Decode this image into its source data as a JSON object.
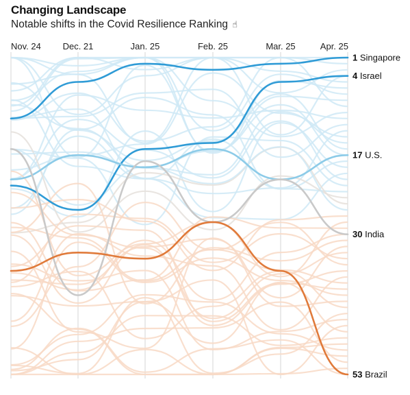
{
  "title": "Changing Landscape",
  "subtitle": "Notable shifts in the Covid Resilience Ranking",
  "subtitle_icon": "tap-hand-icon",
  "chart_data": {
    "type": "line",
    "subtype": "bump-chart",
    "x": [
      "Nov. 24",
      "Dec. 21",
      "Jan. 25",
      "Feb. 25",
      "Mar. 25",
      "Apr. 25"
    ],
    "y_axis": {
      "quantity": "rank",
      "range": [
        1,
        53
      ],
      "inverted": true,
      "grid": false
    },
    "highlighted_series": [
      {
        "name": "Singapore",
        "end_rank": 1,
        "values": [
          11,
          5,
          2,
          3,
          2,
          1
        ],
        "color": "#2f9bd6"
      },
      {
        "name": "Israel",
        "end_rank": 4,
        "values": [
          22,
          26,
          16,
          15,
          5,
          4
        ],
        "color": "#2f9bd6"
      },
      {
        "name": "U.S.",
        "end_rank": 17,
        "values": [
          21,
          17,
          19,
          16,
          21,
          17
        ],
        "color": "#8ccbe8"
      },
      {
        "name": "India",
        "end_rank": 30,
        "values": [
          16,
          40,
          18,
          28,
          21,
          30
        ],
        "color": "#c9c9c9"
      },
      {
        "name": "Brazil",
        "end_rank": 53,
        "values": [
          36,
          33,
          34,
          28,
          36,
          53
        ],
        "color": "#e07a3a"
      }
    ],
    "right_labels": [
      {
        "rank": "1",
        "name": "Singapore"
      },
      {
        "rank": "4",
        "name": "Israel"
      },
      {
        "rank": "17",
        "name": "U.S."
      },
      {
        "rank": "30",
        "name": "India"
      },
      {
        "rank": "53",
        "name": "Brazil"
      }
    ],
    "colors": {
      "top_ranks": "#cfe9f6",
      "bottom_ranks": "#f8d9c6",
      "highlight_blue": "#2f9bd6",
      "highlight_light_blue": "#8ccbe8",
      "highlight_orange": "#e07a3a",
      "highlight_peach": "#eeb48f",
      "highlight_gray": "#bfbfbf"
    }
  }
}
